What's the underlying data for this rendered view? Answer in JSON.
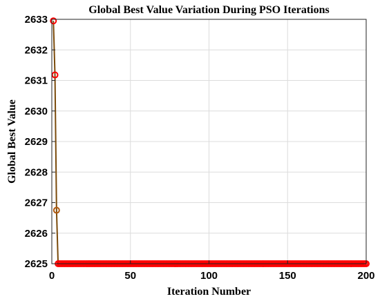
{
  "chart_data": {
    "type": "line",
    "title": "Global Best Value Variation During PSO Iterations",
    "xlabel": "Iteration Number",
    "ylabel": "Global Best Value",
    "xlim": [
      0,
      200
    ],
    "ylim": [
      2625,
      2633
    ],
    "xticks": [
      0,
      50,
      100,
      150,
      200
    ],
    "yticks": [
      2625,
      2626,
      2627,
      2628,
      2629,
      2630,
      2631,
      2632,
      2633
    ],
    "grid": true,
    "series": [
      {
        "color": "#ff0000",
        "line_color": "#7a4a0a",
        "marker": "circle",
        "x_start": 1,
        "x_end": 200,
        "y_initial": [
          2632.95,
          2631.18,
          2626.75
        ],
        "y_final": 2625.0
      }
    ],
    "colors": {
      "marker": "#ff0000",
      "marker_dim": "#b05a10",
      "line": "#7a4a0a"
    }
  }
}
